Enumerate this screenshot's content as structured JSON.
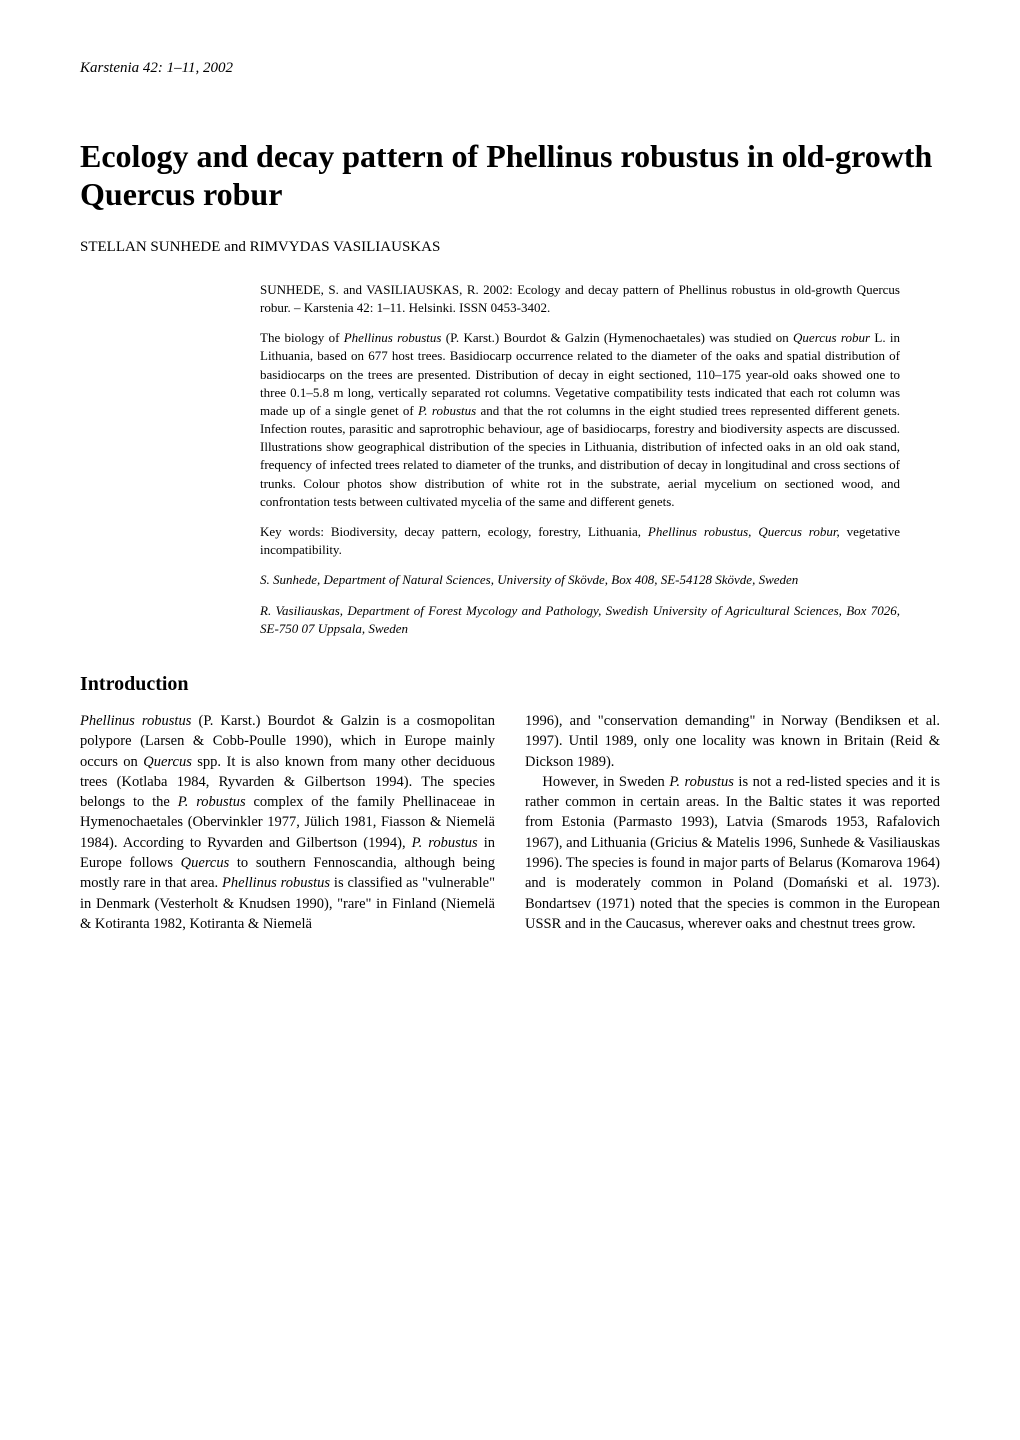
{
  "journal_ref": "Karstenia 42: 1–11, 2002",
  "title": "Ecology and decay pattern of Phellinus robustus in old-growth Quercus robur",
  "authors": "STELLAN SUNHEDE and RIMVYDAS VASILIAUSKAS",
  "citation": "SUNHEDE, S. and VASILIAUSKAS, R. 2002: Ecology and decay pattern of Phellinus robustus in old-growth Quercus robur. – Karstenia 42: 1–11. Helsinki. ISSN 0453-3402.",
  "abstract_p1_a": "The biology of ",
  "abstract_p1_b": "Phellinus robustus",
  "abstract_p1_c": " (P. Karst.) Bourdot & Galzin (Hymenochaetales) was studied on ",
  "abstract_p1_d": "Quercus robur",
  "abstract_p1_e": " L. in Lithuania, based on 677 host trees. Basidiocarp occurrence related to the diameter of the oaks and spatial distribution of basidiocarps on the trees are presented. Distribution of decay in eight sectioned, 110–175 year-old oaks showed one to three 0.1–5.8 m long, vertically separated rot columns. Vegetative compatibility tests indicated that each rot column was made up of a single genet of ",
  "abstract_p1_f": "P. robustus",
  "abstract_p1_g": " and that the rot columns in the eight studied trees represented different genets. Infection routes, parasitic and saprotrophic behaviour, age of basidiocarps, forestry and biodiversity aspects are discussed. Illustrations show geographical distribution of the species in Lithuania, distribution of infected oaks in an old oak stand, frequency of infected trees related to diameter of the trunks, and distribution of decay in longitudinal and cross sections of trunks. Colour photos show distribution of white rot in the substrate, aerial mycelium on sectioned wood, and confrontation tests between cultivated mycelia of the same and different genets.",
  "keywords_label": "Key words: ",
  "keywords_a": "Biodiversity, decay pattern, ecology, forestry, Lithuania, ",
  "keywords_b": "Phellinus robustus, Quercus robur,",
  "keywords_c": " vegetative incompatibility.",
  "affiliation1": "S. Sunhede, Department of Natural Sciences, University of Skövde, Box 408, SE-54128 Skövde, Sweden",
  "affiliation2": "R. Vasiliauskas, Department of Forest Mycology and Pathology, Swedish University of Agricultural Sciences, Box 7026, SE-750 07 Uppsala, Sweden",
  "section_heading": "Introduction",
  "intro_col1_a": "Phellinus robustus",
  "intro_col1_b": " (P. Karst.) Bourdot & Galzin is a cosmopolitan polypore (Larsen & Cobb-Poulle 1990), which in Europe mainly occurs on ",
  "intro_col1_c": "Quercus",
  "intro_col1_d": " spp. It is also known from many other deciduous trees (Kotlaba 1984, Ryvarden & Gilbertson 1994). The species belongs to the ",
  "intro_col1_e": "P. robustus",
  "intro_col1_f": " complex of the family Phellinaceae in Hymenochaetales (Obervinkler 1977, Jülich 1981, Fiasson & Niemelä 1984). According to Ryvarden and Gilbertson (1994), ",
  "intro_col1_g": "P. robustus",
  "intro_col1_h": " in Europe follows ",
  "intro_col1_i": "Quercus",
  "intro_col1_j": " to southern Fennoscandia, although being mostly rare in that area. ",
  "intro_col1_k": "Phellinus robustus",
  "intro_col1_l": " is classified as \"vulnerable\" in Denmark (Vesterholt & Knudsen 1990), \"rare\" in Finland (Niemelä & Kotiranta 1982, Kotiranta & Niemelä",
  "intro_col2_a": "1996), and \"conservation demanding\" in Norway (Bendiksen et al. 1997). Until 1989, only one locality was known in Britain (Reid & Dickson 1989).",
  "intro_col2_b": "However, in Sweden ",
  "intro_col2_c": "P. robustus",
  "intro_col2_d": " is not a red-listed species and it is rather common in certain areas. In the Baltic states it was reported from Estonia (Parmasto 1993), Latvia (Smarods 1953, Rafalovich 1967), and Lithuania (Gricius & Matelis 1996, Sunhede & Vasiliauskas 1996). The species is found in major parts of Belarus (Komarova 1964) and is moderately common in Poland (Domański et al. 1973). Bondartsev (1971) noted that the species is common in the European USSR and in the Caucasus, wherever oaks and chestnut trees grow."
}
